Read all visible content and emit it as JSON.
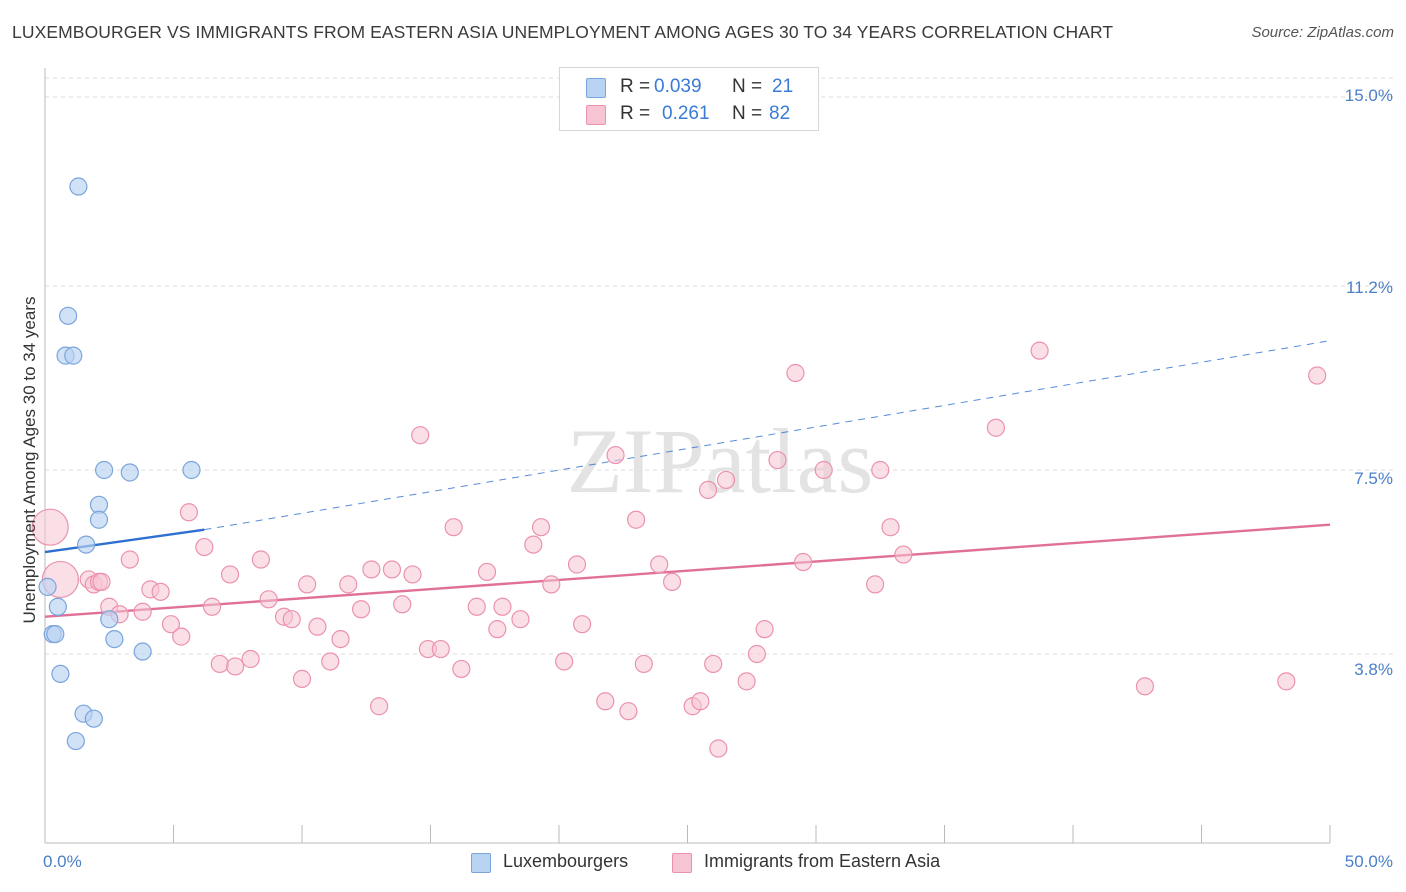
{
  "title": "LUXEMBOURGER VS IMMIGRANTS FROM EASTERN ASIA UNEMPLOYMENT AMONG AGES 30 TO 34 YEARS CORRELATION CHART",
  "source": "Source: ZipAtlas.com",
  "watermark": "ZIPatlas",
  "colors": {
    "blue_fill": "#b9d3f3",
    "blue_stroke": "#7aa5dc",
    "blue_line": "#2f6fcf",
    "pink_fill": "#f7c4d3",
    "pink_stroke": "#eb92ad",
    "pink_line": "#e07098",
    "tick_text": "#4a7fc9",
    "grid": "#dcdcdc"
  },
  "legend": {
    "rows": [
      {
        "r_label": "R =",
        "r_value": "0.039",
        "n_label": "N =",
        "n_value": "21"
      },
      {
        "r_label": "R =",
        "r_value": "0.261",
        "n_label": "N =",
        "n_value": "82"
      }
    ],
    "series": [
      "Luxembourgers",
      "Immigrants from Eastern Asia"
    ]
  },
  "chart_data": {
    "type": "scatter",
    "title": "LUXEMBOURGER VS IMMIGRANTS FROM EASTERN ASIA UNEMPLOYMENT AMONG AGES 30 TO 34 YEARS CORRELATION CHART",
    "xlabel": "",
    "ylabel": "Unemployment Among Ages 30 to 34 years",
    "xlim": [
      0,
      50
    ],
    "ylim": [
      0,
      15.5
    ],
    "x_tick_labels": [
      "0.0%",
      "50.0%"
    ],
    "y_ticks": [
      3.8,
      7.5,
      11.2,
      15.0
    ],
    "y_tick_labels": [
      "3.8%",
      "7.5%",
      "11.2%",
      "15.0%"
    ],
    "grid": true,
    "legend_position": "top-center",
    "series": [
      {
        "name": "Luxembourgers",
        "R": 0.039,
        "N": 21,
        "trend": {
          "x0": 0,
          "y0": 5.85,
          "x1": 6.2,
          "y1": 6.3,
          "dashed_to_x": 50,
          "dashed_to_y": 10.1
        },
        "points": [
          {
            "x": 1.3,
            "y": 13.2
          },
          {
            "x": 0.9,
            "y": 10.6
          },
          {
            "x": 0.8,
            "y": 9.8
          },
          {
            "x": 1.1,
            "y": 9.8
          },
          {
            "x": 2.3,
            "y": 7.5
          },
          {
            "x": 3.3,
            "y": 7.45
          },
          {
            "x": 5.7,
            "y": 7.5
          },
          {
            "x": 2.1,
            "y": 6.8
          },
          {
            "x": 2.1,
            "y": 6.5
          },
          {
            "x": 1.6,
            "y": 6.0
          },
          {
            "x": 0.1,
            "y": 5.15
          },
          {
            "x": 0.5,
            "y": 4.75
          },
          {
            "x": 0.3,
            "y": 4.2
          },
          {
            "x": 0.4,
            "y": 4.2
          },
          {
            "x": 2.5,
            "y": 4.5
          },
          {
            "x": 2.7,
            "y": 4.1
          },
          {
            "x": 3.8,
            "y": 3.85
          },
          {
            "x": 0.6,
            "y": 3.4
          },
          {
            "x": 1.5,
            "y": 2.6
          },
          {
            "x": 1.9,
            "y": 2.5
          },
          {
            "x": 1.2,
            "y": 2.05
          }
        ]
      },
      {
        "name": "Immigrants from Eastern Asia",
        "R": 0.261,
        "N": 82,
        "trend": {
          "x0": 0,
          "y0": 4.55,
          "x1": 50,
          "y1": 6.4
        },
        "points": [
          {
            "x": 0.2,
            "y": 6.35,
            "big": true
          },
          {
            "x": 0.6,
            "y": 5.3,
            "big": true
          },
          {
            "x": 1.7,
            "y": 5.3
          },
          {
            "x": 1.9,
            "y": 5.2
          },
          {
            "x": 2.1,
            "y": 5.25
          },
          {
            "x": 2.2,
            "y": 5.25
          },
          {
            "x": 2.5,
            "y": 4.75
          },
          {
            "x": 2.9,
            "y": 4.6
          },
          {
            "x": 3.3,
            "y": 5.7
          },
          {
            "x": 3.8,
            "y": 4.65
          },
          {
            "x": 4.1,
            "y": 5.1
          },
          {
            "x": 4.5,
            "y": 5.05
          },
          {
            "x": 4.9,
            "y": 4.4
          },
          {
            "x": 5.3,
            "y": 4.15
          },
          {
            "x": 5.6,
            "y": 6.65
          },
          {
            "x": 6.2,
            "y": 5.95
          },
          {
            "x": 6.5,
            "y": 4.75
          },
          {
            "x": 6.8,
            "y": 3.6
          },
          {
            "x": 7.2,
            "y": 5.4
          },
          {
            "x": 7.4,
            "y": 3.55
          },
          {
            "x": 8.0,
            "y": 3.7
          },
          {
            "x": 8.4,
            "y": 5.7
          },
          {
            "x": 8.7,
            "y": 4.9
          },
          {
            "x": 9.3,
            "y": 4.55
          },
          {
            "x": 9.6,
            "y": 4.5
          },
          {
            "x": 10.0,
            "y": 3.3
          },
          {
            "x": 10.2,
            "y": 5.2
          },
          {
            "x": 10.6,
            "y": 4.35
          },
          {
            "x": 11.1,
            "y": 3.65
          },
          {
            "x": 11.5,
            "y": 4.1
          },
          {
            "x": 11.8,
            "y": 5.2
          },
          {
            "x": 12.3,
            "y": 4.7
          },
          {
            "x": 12.7,
            "y": 5.5
          },
          {
            "x": 13.0,
            "y": 2.75
          },
          {
            "x": 13.5,
            "y": 5.5
          },
          {
            "x": 13.9,
            "y": 4.8
          },
          {
            "x": 14.3,
            "y": 5.4
          },
          {
            "x": 14.6,
            "y": 8.2
          },
          {
            "x": 14.9,
            "y": 3.9
          },
          {
            "x": 15.4,
            "y": 3.9
          },
          {
            "x": 15.9,
            "y": 6.35
          },
          {
            "x": 16.2,
            "y": 3.5
          },
          {
            "x": 16.8,
            "y": 4.75
          },
          {
            "x": 17.2,
            "y": 5.45
          },
          {
            "x": 17.6,
            "y": 4.3
          },
          {
            "x": 17.8,
            "y": 4.75
          },
          {
            "x": 18.5,
            "y": 4.5
          },
          {
            "x": 19.0,
            "y": 6.0
          },
          {
            "x": 19.3,
            "y": 6.35
          },
          {
            "x": 19.7,
            "y": 5.2
          },
          {
            "x": 20.2,
            "y": 3.65
          },
          {
            "x": 20.7,
            "y": 5.6
          },
          {
            "x": 20.9,
            "y": 4.4
          },
          {
            "x": 21.8,
            "y": 2.85
          },
          {
            "x": 22.2,
            "y": 7.8
          },
          {
            "x": 22.7,
            "y": 2.65
          },
          {
            "x": 23.0,
            "y": 6.5
          },
          {
            "x": 23.3,
            "y": 3.6
          },
          {
            "x": 23.9,
            "y": 5.6
          },
          {
            "x": 24.4,
            "y": 5.25
          },
          {
            "x": 25.2,
            "y": 2.75
          },
          {
            "x": 25.5,
            "y": 2.85
          },
          {
            "x": 25.8,
            "y": 7.1
          },
          {
            "x": 26.0,
            "y": 3.6
          },
          {
            "x": 26.5,
            "y": 7.3
          },
          {
            "x": 26.2,
            "y": 1.9
          },
          {
            "x": 27.3,
            "y": 3.25
          },
          {
            "x": 27.7,
            "y": 3.8
          },
          {
            "x": 28.0,
            "y": 4.3
          },
          {
            "x": 28.5,
            "y": 7.7
          },
          {
            "x": 29.2,
            "y": 9.45
          },
          {
            "x": 29.5,
            "y": 5.65
          },
          {
            "x": 30.3,
            "y": 7.5
          },
          {
            "x": 32.3,
            "y": 5.2
          },
          {
            "x": 32.5,
            "y": 7.5
          },
          {
            "x": 32.9,
            "y": 6.35
          },
          {
            "x": 33.4,
            "y": 5.8
          },
          {
            "x": 37.0,
            "y": 8.35
          },
          {
            "x": 38.7,
            "y": 9.9
          },
          {
            "x": 42.8,
            "y": 3.15
          },
          {
            "x": 48.3,
            "y": 3.25
          },
          {
            "x": 49.5,
            "y": 9.4
          }
        ]
      }
    ]
  }
}
